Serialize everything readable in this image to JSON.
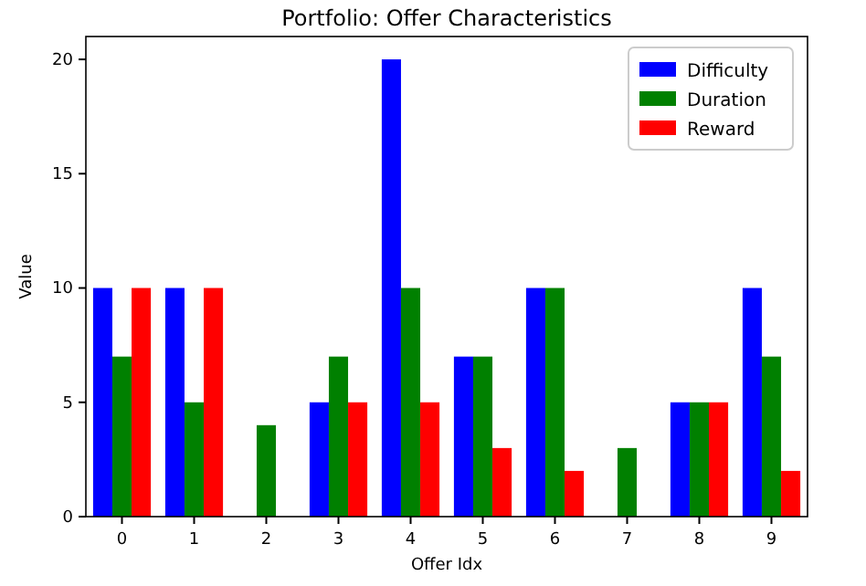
{
  "chart_data": {
    "type": "bar",
    "title": "Portfolio: Offer Characteristics",
    "xlabel": "Offer Idx",
    "ylabel": "Value",
    "categories": [
      "0",
      "1",
      "2",
      "3",
      "4",
      "5",
      "6",
      "7",
      "8",
      "9"
    ],
    "series": [
      {
        "name": "Difficulty",
        "color": "#0000ff",
        "values": [
          10,
          10,
          0,
          5,
          20,
          7,
          10,
          0,
          5,
          10
        ]
      },
      {
        "name": "Duration",
        "color": "#008000",
        "values": [
          7,
          5,
          4,
          7,
          10,
          7,
          10,
          3,
          5,
          7
        ]
      },
      {
        "name": "Reward",
        "color": "#ff0000",
        "values": [
          10,
          10,
          0,
          5,
          5,
          3,
          2,
          0,
          5,
          2
        ]
      }
    ],
    "ylim": [
      0,
      21
    ],
    "yticks": [
      0,
      5,
      10,
      15,
      20
    ],
    "legend": "top right",
    "grid": false
  }
}
